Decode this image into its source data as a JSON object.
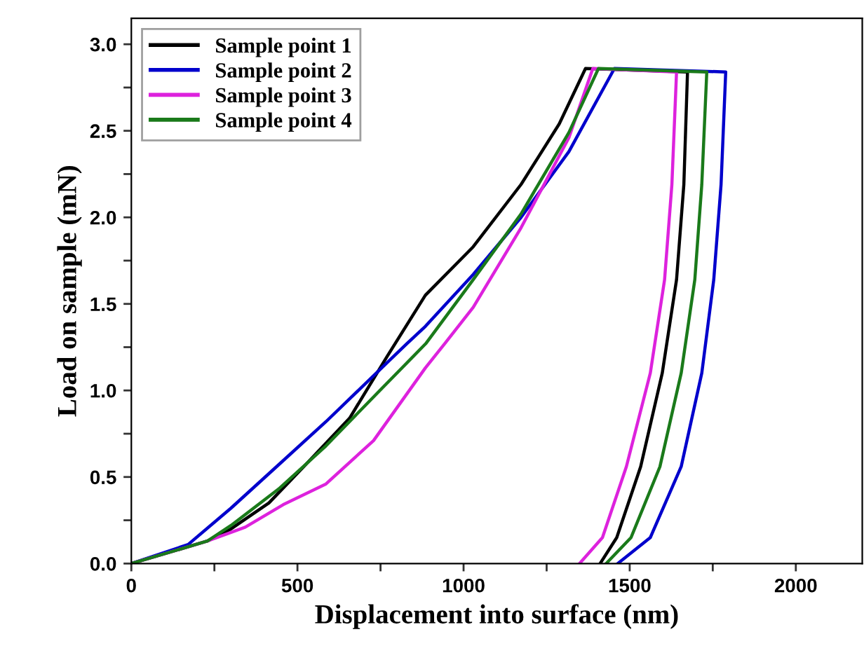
{
  "chart_data": {
    "type": "line",
    "xlabel": "Displacement into surface (nm)",
    "ylabel": "Load on sample (mN)",
    "xlim": [
      0,
      2200
    ],
    "ylim": [
      0,
      3.15
    ],
    "xticks": [
      0,
      {
        "value": 250,
        "label": null
      },
      500,
      {
        "value": 750,
        "label": null
      },
      1000,
      {
        "value": 1250,
        "label": null
      },
      1500,
      {
        "value": 1750,
        "label": null
      },
      2000
    ],
    "yticks": [
      {
        "value": 0,
        "label": "0.0"
      },
      {
        "value": 0.25,
        "label": null
      },
      0.5,
      {
        "value": 0.75,
        "label": null
      },
      {
        "value": 1,
        "label": "1.0"
      },
      {
        "value": 1.25,
        "label": null
      },
      1.5,
      {
        "value": 1.75,
        "label": null
      },
      {
        "value": 2,
        "label": "2.0"
      },
      {
        "value": 2.25,
        "label": null
      },
      2.5,
      {
        "value": 2.75,
        "label": null
      },
      {
        "value": 3,
        "label": "3.0"
      }
    ],
    "grid": false,
    "legend": "top left",
    "marker": "none",
    "line_style": "solid",
    "series": [
      {
        "name": "Sample point 1",
        "color": "#000000",
        "x": [
          0,
          229,
          300,
          414,
          514,
          657,
          771,
          885,
          1029,
          1173,
          1288,
          1367,
          1674,
          1663,
          1641,
          1598,
          1533,
          1461,
          1411
        ],
        "values": [
          0,
          0.13,
          0.2,
          0.35,
          0.55,
          0.84,
          1.2,
          1.55,
          1.83,
          2.19,
          2.54,
          2.86,
          2.84,
          2.19,
          1.64,
          1.1,
          0.56,
          0.15,
          0
        ]
      },
      {
        "name": "Sample point 2",
        "color": "#0000cc",
        "x": [
          0,
          171,
          300,
          443,
          586,
          829,
          885,
          1029,
          1173,
          1317,
          1454,
          1789,
          1775,
          1753,
          1717,
          1655,
          1562,
          1464
        ],
        "values": [
          0,
          0.11,
          0.32,
          0.57,
          0.82,
          1.27,
          1.37,
          1.67,
          2.0,
          2.38,
          2.86,
          2.84,
          2.19,
          1.64,
          1.1,
          0.56,
          0.15,
          0
        ]
      },
      {
        "name": "Sample point 3",
        "color": "#dd22dd",
        "x": [
          0,
          229,
          343,
          457,
          586,
          729,
          885,
          943,
          1029,
          1173,
          1317,
          1389,
          1641,
          1627,
          1605,
          1562,
          1490,
          1418,
          1349
        ],
        "values": [
          0,
          0.13,
          0.21,
          0.34,
          0.46,
          0.71,
          1.13,
          1.27,
          1.48,
          1.94,
          2.46,
          2.86,
          2.84,
          2.19,
          1.64,
          1.1,
          0.56,
          0.15,
          0
        ]
      },
      {
        "name": "Sample point 4",
        "color": "#1a7a1a",
        "x": [
          0,
          229,
          300,
          443,
          586,
          743,
          886,
          1029,
          1173,
          1317,
          1406,
          1732,
          1717,
          1696,
          1655,
          1591,
          1504,
          1429
        ],
        "values": [
          0,
          0.13,
          0.22,
          0.43,
          0.68,
          0.99,
          1.27,
          1.64,
          2.02,
          2.49,
          2.86,
          2.84,
          2.19,
          1.64,
          1.1,
          0.56,
          0.15,
          0
        ]
      }
    ]
  }
}
